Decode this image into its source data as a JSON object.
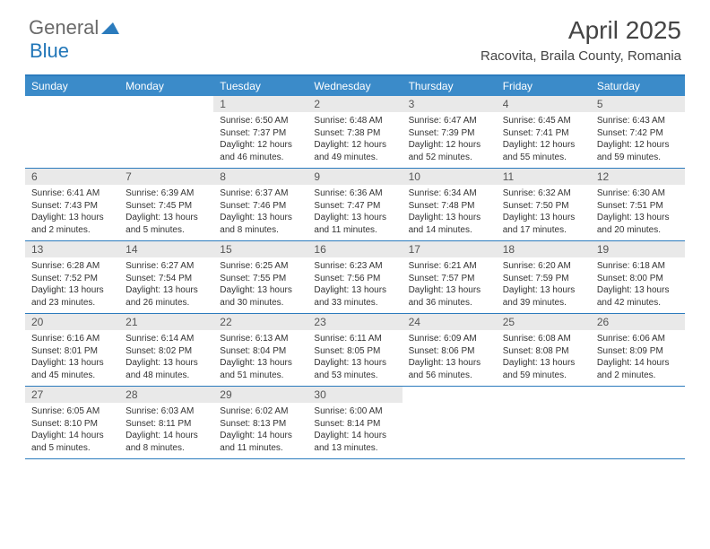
{
  "logo": {
    "part1": "General",
    "part2": "Blue"
  },
  "title": "April 2025",
  "location": "Racovita, Braila County, Romania",
  "headers": [
    "Sunday",
    "Monday",
    "Tuesday",
    "Wednesday",
    "Thursday",
    "Friday",
    "Saturday"
  ],
  "colors": {
    "header_bg": "#3b8bc9",
    "border": "#2b7bbd",
    "daynum_bg": "#e9e9e9",
    "logo_gray": "#6a6a6a",
    "logo_blue": "#2176b8"
  },
  "weeks": [
    [
      {
        "empty": true
      },
      {
        "empty": true
      },
      {
        "n": "1",
        "sr": "Sunrise: 6:50 AM",
        "ss": "Sunset: 7:37 PM",
        "dl": "Daylight: 12 hours and 46 minutes."
      },
      {
        "n": "2",
        "sr": "Sunrise: 6:48 AM",
        "ss": "Sunset: 7:38 PM",
        "dl": "Daylight: 12 hours and 49 minutes."
      },
      {
        "n": "3",
        "sr": "Sunrise: 6:47 AM",
        "ss": "Sunset: 7:39 PM",
        "dl": "Daylight: 12 hours and 52 minutes."
      },
      {
        "n": "4",
        "sr": "Sunrise: 6:45 AM",
        "ss": "Sunset: 7:41 PM",
        "dl": "Daylight: 12 hours and 55 minutes."
      },
      {
        "n": "5",
        "sr": "Sunrise: 6:43 AM",
        "ss": "Sunset: 7:42 PM",
        "dl": "Daylight: 12 hours and 59 minutes."
      }
    ],
    [
      {
        "n": "6",
        "sr": "Sunrise: 6:41 AM",
        "ss": "Sunset: 7:43 PM",
        "dl": "Daylight: 13 hours and 2 minutes."
      },
      {
        "n": "7",
        "sr": "Sunrise: 6:39 AM",
        "ss": "Sunset: 7:45 PM",
        "dl": "Daylight: 13 hours and 5 minutes."
      },
      {
        "n": "8",
        "sr": "Sunrise: 6:37 AM",
        "ss": "Sunset: 7:46 PM",
        "dl": "Daylight: 13 hours and 8 minutes."
      },
      {
        "n": "9",
        "sr": "Sunrise: 6:36 AM",
        "ss": "Sunset: 7:47 PM",
        "dl": "Daylight: 13 hours and 11 minutes."
      },
      {
        "n": "10",
        "sr": "Sunrise: 6:34 AM",
        "ss": "Sunset: 7:48 PM",
        "dl": "Daylight: 13 hours and 14 minutes."
      },
      {
        "n": "11",
        "sr": "Sunrise: 6:32 AM",
        "ss": "Sunset: 7:50 PM",
        "dl": "Daylight: 13 hours and 17 minutes."
      },
      {
        "n": "12",
        "sr": "Sunrise: 6:30 AM",
        "ss": "Sunset: 7:51 PM",
        "dl": "Daylight: 13 hours and 20 minutes."
      }
    ],
    [
      {
        "n": "13",
        "sr": "Sunrise: 6:28 AM",
        "ss": "Sunset: 7:52 PM",
        "dl": "Daylight: 13 hours and 23 minutes."
      },
      {
        "n": "14",
        "sr": "Sunrise: 6:27 AM",
        "ss": "Sunset: 7:54 PM",
        "dl": "Daylight: 13 hours and 26 minutes."
      },
      {
        "n": "15",
        "sr": "Sunrise: 6:25 AM",
        "ss": "Sunset: 7:55 PM",
        "dl": "Daylight: 13 hours and 30 minutes."
      },
      {
        "n": "16",
        "sr": "Sunrise: 6:23 AM",
        "ss": "Sunset: 7:56 PM",
        "dl": "Daylight: 13 hours and 33 minutes."
      },
      {
        "n": "17",
        "sr": "Sunrise: 6:21 AM",
        "ss": "Sunset: 7:57 PM",
        "dl": "Daylight: 13 hours and 36 minutes."
      },
      {
        "n": "18",
        "sr": "Sunrise: 6:20 AM",
        "ss": "Sunset: 7:59 PM",
        "dl": "Daylight: 13 hours and 39 minutes."
      },
      {
        "n": "19",
        "sr": "Sunrise: 6:18 AM",
        "ss": "Sunset: 8:00 PM",
        "dl": "Daylight: 13 hours and 42 minutes."
      }
    ],
    [
      {
        "n": "20",
        "sr": "Sunrise: 6:16 AM",
        "ss": "Sunset: 8:01 PM",
        "dl": "Daylight: 13 hours and 45 minutes."
      },
      {
        "n": "21",
        "sr": "Sunrise: 6:14 AM",
        "ss": "Sunset: 8:02 PM",
        "dl": "Daylight: 13 hours and 48 minutes."
      },
      {
        "n": "22",
        "sr": "Sunrise: 6:13 AM",
        "ss": "Sunset: 8:04 PM",
        "dl": "Daylight: 13 hours and 51 minutes."
      },
      {
        "n": "23",
        "sr": "Sunrise: 6:11 AM",
        "ss": "Sunset: 8:05 PM",
        "dl": "Daylight: 13 hours and 53 minutes."
      },
      {
        "n": "24",
        "sr": "Sunrise: 6:09 AM",
        "ss": "Sunset: 8:06 PM",
        "dl": "Daylight: 13 hours and 56 minutes."
      },
      {
        "n": "25",
        "sr": "Sunrise: 6:08 AM",
        "ss": "Sunset: 8:08 PM",
        "dl": "Daylight: 13 hours and 59 minutes."
      },
      {
        "n": "26",
        "sr": "Sunrise: 6:06 AM",
        "ss": "Sunset: 8:09 PM",
        "dl": "Daylight: 14 hours and 2 minutes."
      }
    ],
    [
      {
        "n": "27",
        "sr": "Sunrise: 6:05 AM",
        "ss": "Sunset: 8:10 PM",
        "dl": "Daylight: 14 hours and 5 minutes."
      },
      {
        "n": "28",
        "sr": "Sunrise: 6:03 AM",
        "ss": "Sunset: 8:11 PM",
        "dl": "Daylight: 14 hours and 8 minutes."
      },
      {
        "n": "29",
        "sr": "Sunrise: 6:02 AM",
        "ss": "Sunset: 8:13 PM",
        "dl": "Daylight: 14 hours and 11 minutes."
      },
      {
        "n": "30",
        "sr": "Sunrise: 6:00 AM",
        "ss": "Sunset: 8:14 PM",
        "dl": "Daylight: 14 hours and 13 minutes."
      },
      {
        "empty": true
      },
      {
        "empty": true
      },
      {
        "empty": true
      }
    ]
  ]
}
